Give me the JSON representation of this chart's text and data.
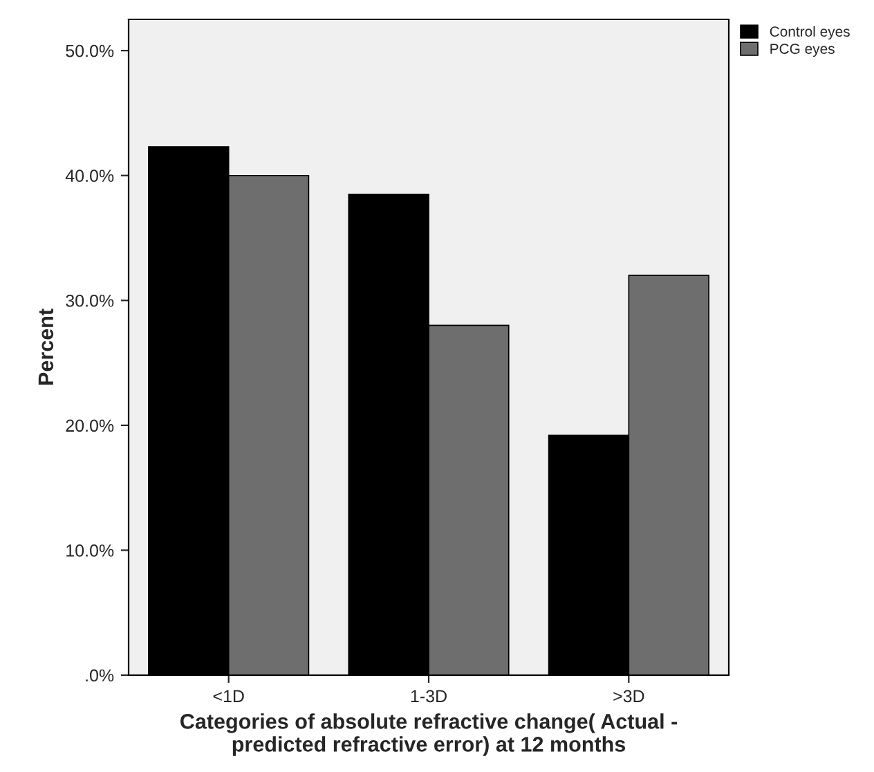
{
  "chart_data": {
    "type": "bar",
    "xlabel": "Categories of absolute refractive change( Actual -\npredicted refractive error) at 12 months",
    "ylabel": "Percent",
    "categories": [
      "<1D",
      "1-3D",
      ">3D"
    ],
    "series": [
      {
        "name": "Control eyes",
        "color": "#000000",
        "values": [
          42.3,
          38.5,
          19.2
        ]
      },
      {
        "name": "PCG eyes",
        "color": "#6e6e6e",
        "values": [
          40.0,
          28.0,
          32.0
        ]
      }
    ],
    "ylim": [
      0,
      52.5
    ],
    "yticks": [
      {
        "value": 0,
        "label": ".0%"
      },
      {
        "value": 10,
        "label": "10.0%"
      },
      {
        "value": 20,
        "label": "20.0%"
      },
      {
        "value": 30,
        "label": "30.0%"
      },
      {
        "value": 40,
        "label": "40.0%"
      },
      {
        "value": 50,
        "label": "50.0%"
      }
    ],
    "grid": false,
    "legend": "top right"
  }
}
